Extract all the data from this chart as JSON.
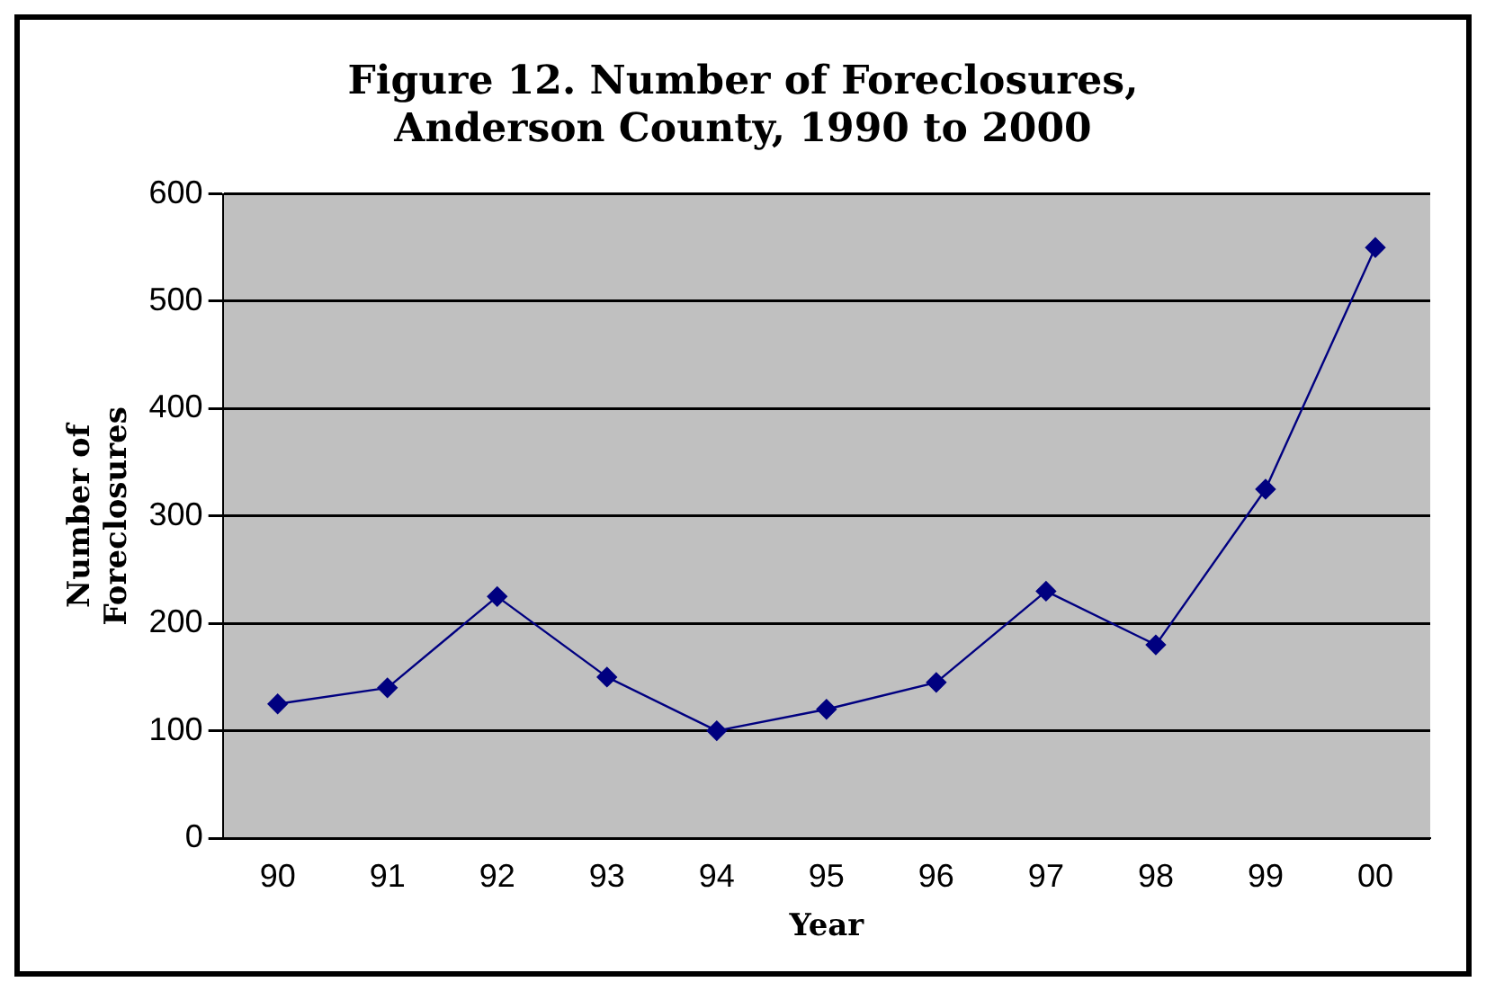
{
  "chart_data": {
    "type": "line",
    "title": "Figure 12. Number of Foreclosures,\nAnderson County, 1990 to 2000",
    "xlabel": "Year",
    "ylabel": "Number of\nForeclosures",
    "categories": [
      "90",
      "91",
      "92",
      "93",
      "94",
      "95",
      "96",
      "97",
      "98",
      "99",
      "00"
    ],
    "series": [
      {
        "color": "#000080",
        "values": [
          125,
          140,
          225,
          150,
          100,
          120,
          145,
          230,
          180,
          325,
          550
        ]
      }
    ],
    "ylim": [
      0,
      600
    ],
    "yticks": [
      0,
      100,
      200,
      300,
      400,
      500,
      600
    ],
    "grid": "y",
    "legend": false,
    "marker": "diamond",
    "line_style": "solid"
  }
}
